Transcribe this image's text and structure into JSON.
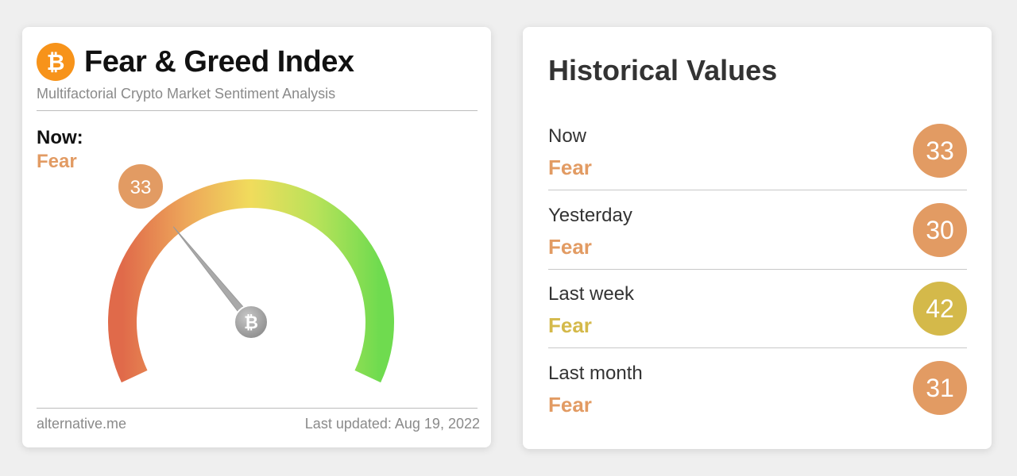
{
  "fear_greed": {
    "logo_symbol": "₿",
    "title": "Fear & Greed Index",
    "subtitle": "Multifactorial Crypto Market Sentiment Analysis",
    "now_label": "Now:",
    "now_classification": "Fear",
    "value": "33",
    "value_number": 33,
    "value_max": 100,
    "footer_source": "alternative.me",
    "footer_updated": "Last updated: Aug 19, 2022",
    "colors": {
      "fear": "#e29b63",
      "neutral_fear": "#d4b94a",
      "gauge_low": "#e06a4a",
      "gauge_mid": "#f0dc5c",
      "gauge_high": "#6fdb4f",
      "needle": "#a9a9a9"
    },
    "hub_icon": "bitcoin-icon"
  },
  "historical": {
    "title": "Historical Values",
    "rows": [
      {
        "period": "Now",
        "classification": "Fear",
        "value": "33",
        "color": "#e29b63"
      },
      {
        "period": "Yesterday",
        "classification": "Fear",
        "value": "30",
        "color": "#e29b63"
      },
      {
        "period": "Last week",
        "classification": "Fear",
        "value": "42",
        "color": "#d4b94a"
      },
      {
        "period": "Last month",
        "classification": "Fear",
        "value": "31",
        "color": "#e29b63"
      }
    ]
  }
}
